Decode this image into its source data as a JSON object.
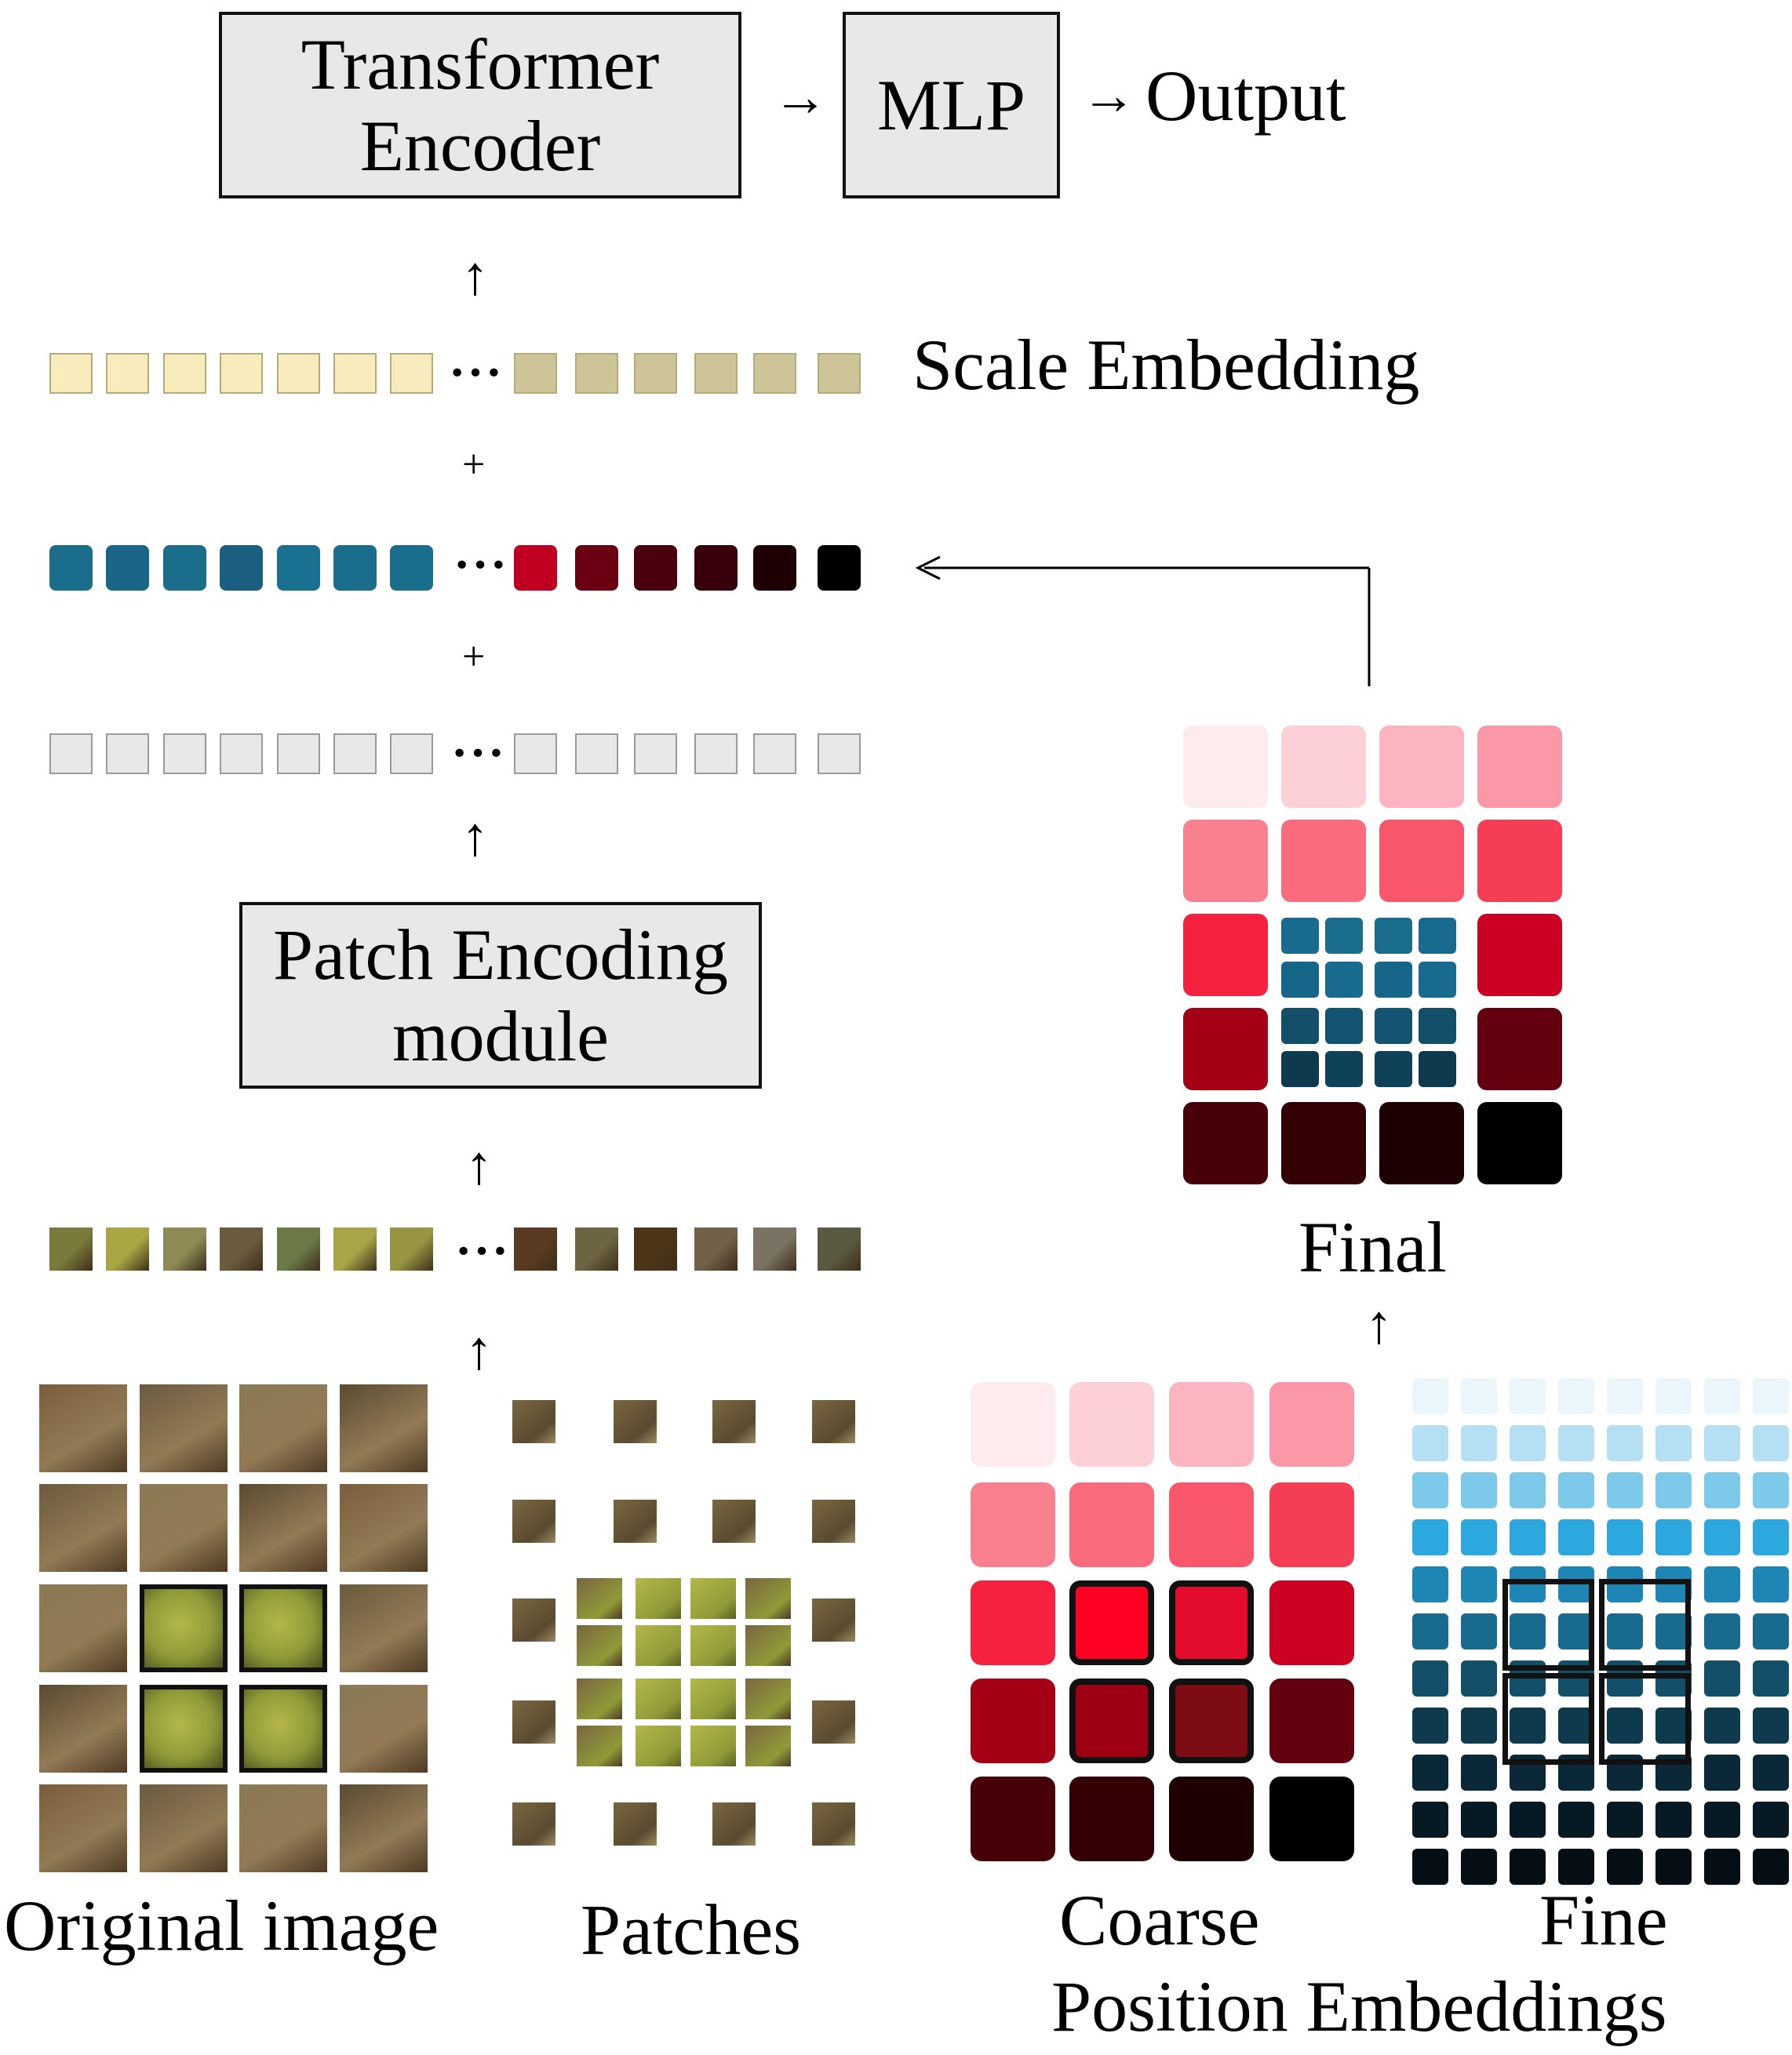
{
  "encoder": {
    "line1": "Transformer",
    "line2": "Encoder"
  },
  "mlp": {
    "label": "MLP"
  },
  "output": {
    "label": "Output"
  },
  "scale_embedding": {
    "label": "Scale Embedding"
  },
  "patch_encoding": {
    "line1": "Patch Encoding",
    "line2": "module"
  },
  "final": {
    "label": "Final"
  },
  "bottom_labels": {
    "original_image": "Original image",
    "patches": "Patches",
    "coarse": "Coarse",
    "fine": "Fine",
    "position_embeddings": "Position Embeddings"
  },
  "symbols": {
    "arrow_right": "→",
    "arrow_up": "↑",
    "plus": "+",
    "ellipsis": "···"
  },
  "colors": {
    "scale_light": "#f8ecbc",
    "scale_dark": "#cdc498",
    "fine_token": "#1a6e8c",
    "empty_token": "#e8e8e8",
    "box_fill": "#e8e8e8",
    "bird_olive": "#9ba43a",
    "bg_brown": "#6b5a3e"
  },
  "coarse_palette": [
    "#fdebee",
    "#fdd0d8",
    "#fcb5c0",
    "#fb98a8",
    "#f9818f",
    "#f96b7d",
    "#f7566b",
    "#f53d56",
    "#f5213e",
    "#ff0022",
    "#e30c2c",
    "#cc0022",
    "#a30016",
    "#9c0012",
    "#7d0c14",
    "#63000f",
    "#480008",
    "#330004",
    "#1f0002",
    "#000000"
  ],
  "fine_palette": [
    "#eaf6fc",
    "#b5e0f3",
    "#7cc9ea",
    "#2da8de",
    "#1d86b4",
    "#186a8e",
    "#134f68",
    "#0e3a4e",
    "#0a2837",
    "#071a24",
    "#050e14"
  ],
  "scale_row_colors": [
    "#f8ecbc",
    "#f8ecbc",
    "#f8ecbc",
    "#f8ecbc",
    "#f8ecbc",
    "#f8ecbc",
    "#f8ecbc",
    "#cdc498",
    "#cdc498",
    "#cdc498",
    "#cdc498",
    "#cdc498",
    "#cdc498"
  ],
  "embedding_row_colors": [
    "#1a6e8c",
    "#1a6688",
    "#1a6e8c",
    "#1a5e80",
    "#1a7090",
    "#1a6e8c",
    "#1a6e8c",
    "#c00020",
    "#6a0012",
    "#4a000d",
    "#38000a",
    "#1e0004",
    "#000000"
  ],
  "patch_row_colors": [
    "#7a7a3a",
    "#a9a743",
    "#8f8a55",
    "#6b5a3e",
    "#6c7a48",
    "#a8a448",
    "#979442",
    "#5a3a20",
    "#6d6440",
    "#4d3518",
    "#706048",
    "#7a7262",
    "#5a5a40"
  ],
  "final_palette": [
    "#fdebee",
    "#fdd0d8",
    "#fcb5c0",
    "#fb98a8",
    "#f9818f",
    "#f96b7d",
    "#f7566b",
    "#f53d56",
    "#f5213e",
    "#cc0022",
    "#a30016",
    "#63000f",
    "#480008",
    "#330004",
    "#1f0002",
    "#000000"
  ],
  "final_fine_palette": [
    "#186a8e",
    "#1a6e8c",
    "#1a6e8c",
    "#186a8e",
    "#16668a",
    "#186a8e",
    "#16668a",
    "#186a8e",
    "#134f68",
    "#135470",
    "#135470",
    "#134f68",
    "#0e3a4e",
    "#0f4258",
    "#0f4258",
    "#0e3a4e"
  ]
}
